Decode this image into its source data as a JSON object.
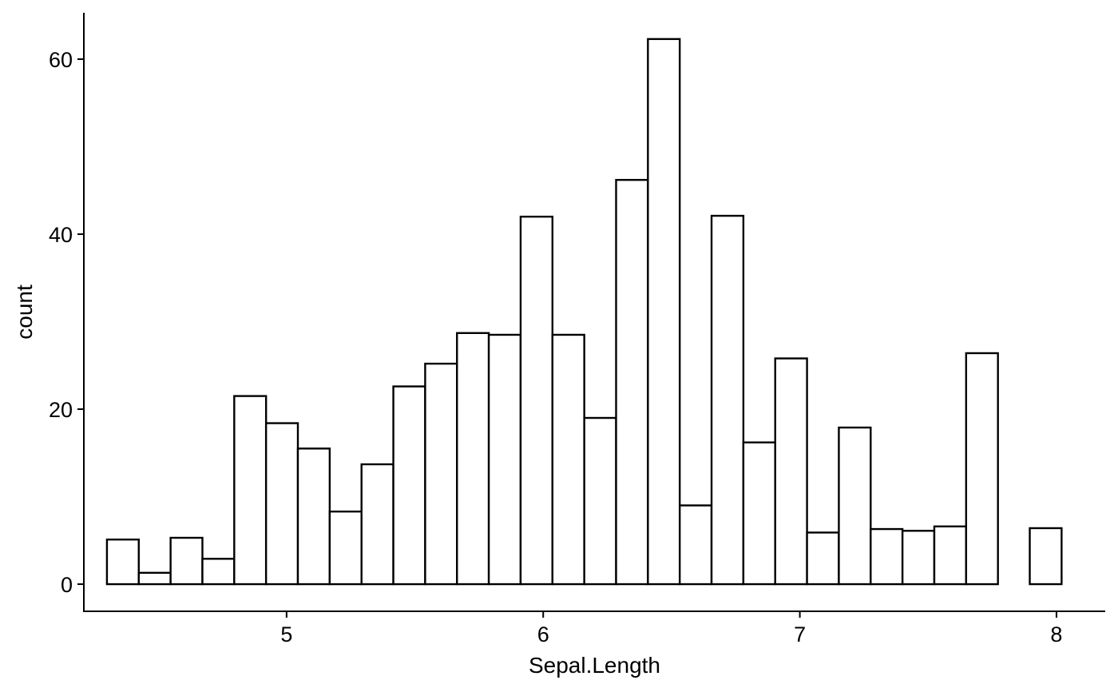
{
  "chart_data": {
    "type": "bar",
    "subtype": "histogram",
    "title": "",
    "xlabel": "Sepal.Length",
    "ylabel": "count",
    "bin_width": 0.124,
    "bins": [
      {
        "start": 4.3,
        "end": 4.424,
        "count": 5.1
      },
      {
        "start": 4.424,
        "end": 4.548,
        "count": 1.3
      },
      {
        "start": 4.548,
        "end": 4.672,
        "count": 5.3
      },
      {
        "start": 4.672,
        "end": 4.796,
        "count": 2.9
      },
      {
        "start": 4.796,
        "end": 4.92,
        "count": 21.5
      },
      {
        "start": 4.92,
        "end": 5.044,
        "count": 18.4
      },
      {
        "start": 5.044,
        "end": 5.168,
        "count": 15.5
      },
      {
        "start": 5.168,
        "end": 5.292,
        "count": 8.3
      },
      {
        "start": 5.292,
        "end": 5.416,
        "count": 13.7
      },
      {
        "start": 5.416,
        "end": 5.54,
        "count": 22.6
      },
      {
        "start": 5.54,
        "end": 5.664,
        "count": 25.2
      },
      {
        "start": 5.664,
        "end": 5.788,
        "count": 28.7
      },
      {
        "start": 5.788,
        "end": 5.912,
        "count": 28.5
      },
      {
        "start": 5.912,
        "end": 6.036,
        "count": 42.0
      },
      {
        "start": 6.036,
        "end": 6.16,
        "count": 28.5
      },
      {
        "start": 6.16,
        "end": 6.284,
        "count": 19.0
      },
      {
        "start": 6.284,
        "end": 6.408,
        "count": 46.2
      },
      {
        "start": 6.408,
        "end": 6.532,
        "count": 62.3
      },
      {
        "start": 6.532,
        "end": 6.656,
        "count": 9.0
      },
      {
        "start": 6.656,
        "end": 6.78,
        "count": 42.1
      },
      {
        "start": 6.78,
        "end": 6.904,
        "count": 16.2
      },
      {
        "start": 6.904,
        "end": 7.028,
        "count": 25.8
      },
      {
        "start": 7.028,
        "end": 7.152,
        "count": 5.9
      },
      {
        "start": 7.152,
        "end": 7.276,
        "count": 17.9
      },
      {
        "start": 7.276,
        "end": 7.4,
        "count": 6.3
      },
      {
        "start": 7.4,
        "end": 7.524,
        "count": 6.1
      },
      {
        "start": 7.524,
        "end": 7.648,
        "count": 6.6
      },
      {
        "start": 7.648,
        "end": 7.772,
        "count": 26.4
      },
      {
        "start": 7.772,
        "end": 7.896,
        "count": 0
      },
      {
        "start": 7.896,
        "end": 8.02,
        "count": 6.4
      }
    ],
    "xlim": [
      4.21,
      8.19
    ],
    "ylim": [
      -3.1,
      65.3
    ],
    "x_ticks": [
      5,
      6,
      7,
      8
    ],
    "x_tick_labels": [
      "5",
      "6",
      "7",
      "8"
    ],
    "y_ticks": [
      0,
      20,
      40,
      60
    ],
    "y_tick_labels": [
      "0",
      "20",
      "40",
      "60"
    ],
    "grid": false,
    "legend": "none",
    "colors": {
      "bar_fill": "#ffffff",
      "bar_outline": "#000000",
      "axis": "#000000",
      "background": "#ffffff"
    }
  }
}
